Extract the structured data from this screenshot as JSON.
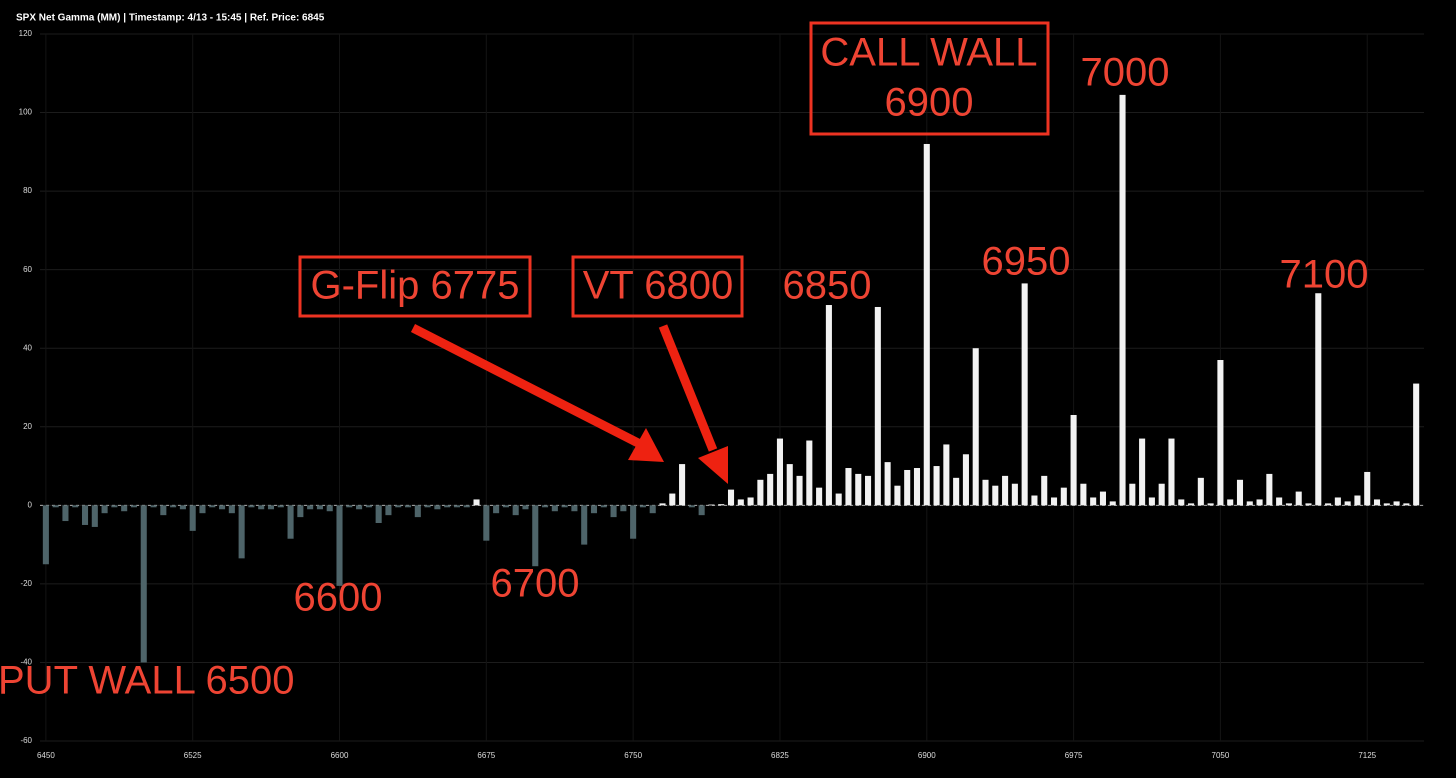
{
  "chart_data": {
    "type": "bar",
    "title": "SPX Net Gamma (MM) | Timestamp: 4/13 - 15:45  | Ref. Price: 6845",
    "x": [
      6450,
      6455,
      6460,
      6465,
      6470,
      6475,
      6480,
      6485,
      6490,
      6495,
      6500,
      6505,
      6510,
      6515,
      6520,
      6525,
      6530,
      6535,
      6540,
      6545,
      6550,
      6555,
      6560,
      6565,
      6570,
      6575,
      6580,
      6585,
      6590,
      6595,
      6600,
      6605,
      6610,
      6615,
      6620,
      6625,
      6630,
      6635,
      6640,
      6645,
      6650,
      6655,
      6660,
      6665,
      6670,
      6675,
      6680,
      6685,
      6690,
      6695,
      6700,
      6705,
      6710,
      6715,
      6720,
      6725,
      6730,
      6735,
      6740,
      6745,
      6750,
      6755,
      6760,
      6765,
      6770,
      6775,
      6780,
      6785,
      6790,
      6795,
      6800,
      6805,
      6810,
      6815,
      6820,
      6825,
      6830,
      6835,
      6840,
      6845,
      6850,
      6855,
      6860,
      6865,
      6870,
      6875,
      6880,
      6885,
      6890,
      6895,
      6900,
      6905,
      6910,
      6915,
      6920,
      6925,
      6930,
      6935,
      6940,
      6945,
      6950,
      6955,
      6960,
      6965,
      6970,
      6975,
      6980,
      6985,
      6990,
      6995,
      7000,
      7005,
      7010,
      7015,
      7020,
      7025,
      7030,
      7035,
      7040,
      7045,
      7050,
      7055,
      7060,
      7065,
      7070,
      7075,
      7080,
      7085,
      7090,
      7095,
      7100,
      7105,
      7110,
      7115,
      7120,
      7125,
      7130,
      7135,
      7140,
      7145,
      7150
    ],
    "values": [
      -15,
      -0.5,
      -4,
      -0.5,
      -5,
      -5.5,
      -2,
      -0.5,
      -1.5,
      -0.5,
      -40,
      -0.5,
      -2.5,
      -0.5,
      -1,
      -6.5,
      -2,
      -0.5,
      -1,
      -2,
      -13.5,
      -0.5,
      -1,
      -1,
      -0.5,
      -8.5,
      -3,
      -1,
      -1,
      -1.5,
      -20.5,
      -0.5,
      -1,
      -0.5,
      -4.5,
      -2.5,
      -0.5,
      -0.5,
      -3,
      -0.5,
      -1,
      -0.5,
      -0.5,
      -0.5,
      1.5,
      -9,
      -2,
      -0.5,
      -2.5,
      -1,
      -15.5,
      -0.5,
      -1.5,
      -0.5,
      -1.5,
      -10,
      -2,
      -0.5,
      -3,
      -1.5,
      -8.5,
      -0.5,
      -2,
      0.5,
      3,
      10.5,
      -0.5,
      -2.5,
      0.2,
      0.3,
      4,
      1.5,
      2,
      6.5,
      8,
      17,
      10.5,
      7.5,
      16.5,
      4.5,
      51,
      3,
      9.5,
      8,
      7.5,
      50.5,
      11,
      5,
      9,
      9.5,
      92,
      10,
      15.5,
      7,
      13,
      40,
      6.5,
      5,
      7.5,
      5.5,
      56.5,
      2.5,
      7.5,
      2,
      4.5,
      23,
      5.5,
      2,
      3.5,
      1,
      104.5,
      5.5,
      17,
      2,
      5.5,
      17,
      1.5,
      0.5,
      7,
      0.5,
      37,
      1.5,
      6.5,
      1,
      1.5,
      8,
      2,
      0.5,
      3.5,
      0.5,
      54,
      0.5,
      2,
      1,
      2.5,
      8.5,
      1.5,
      0.5,
      1,
      0.5,
      31
    ],
    "positive_color": "#f2f2f2",
    "negative_color": "#4e6469",
    "xlim": [
      6447,
      7154
    ],
    "ylim": [
      -60,
      120
    ],
    "xticks": [
      6450,
      6525,
      6600,
      6675,
      6750,
      6825,
      6900,
      6975,
      7050,
      7125
    ],
    "yticks": [
      -60,
      -40,
      -20,
      0,
      20,
      40,
      60,
      80,
      100,
      120
    ],
    "grid": true,
    "annotations": [
      [
        "CALL WALL",
        "6900"
      ],
      [
        "7000"
      ],
      [
        "G-Flip 6775"
      ],
      [
        "VT 6800"
      ],
      [
        "6850"
      ],
      [
        "6950"
      ],
      [
        "7100"
      ],
      [
        "6600"
      ],
      [
        "6700"
      ],
      [
        "PUT WALL 6500"
      ]
    ]
  }
}
